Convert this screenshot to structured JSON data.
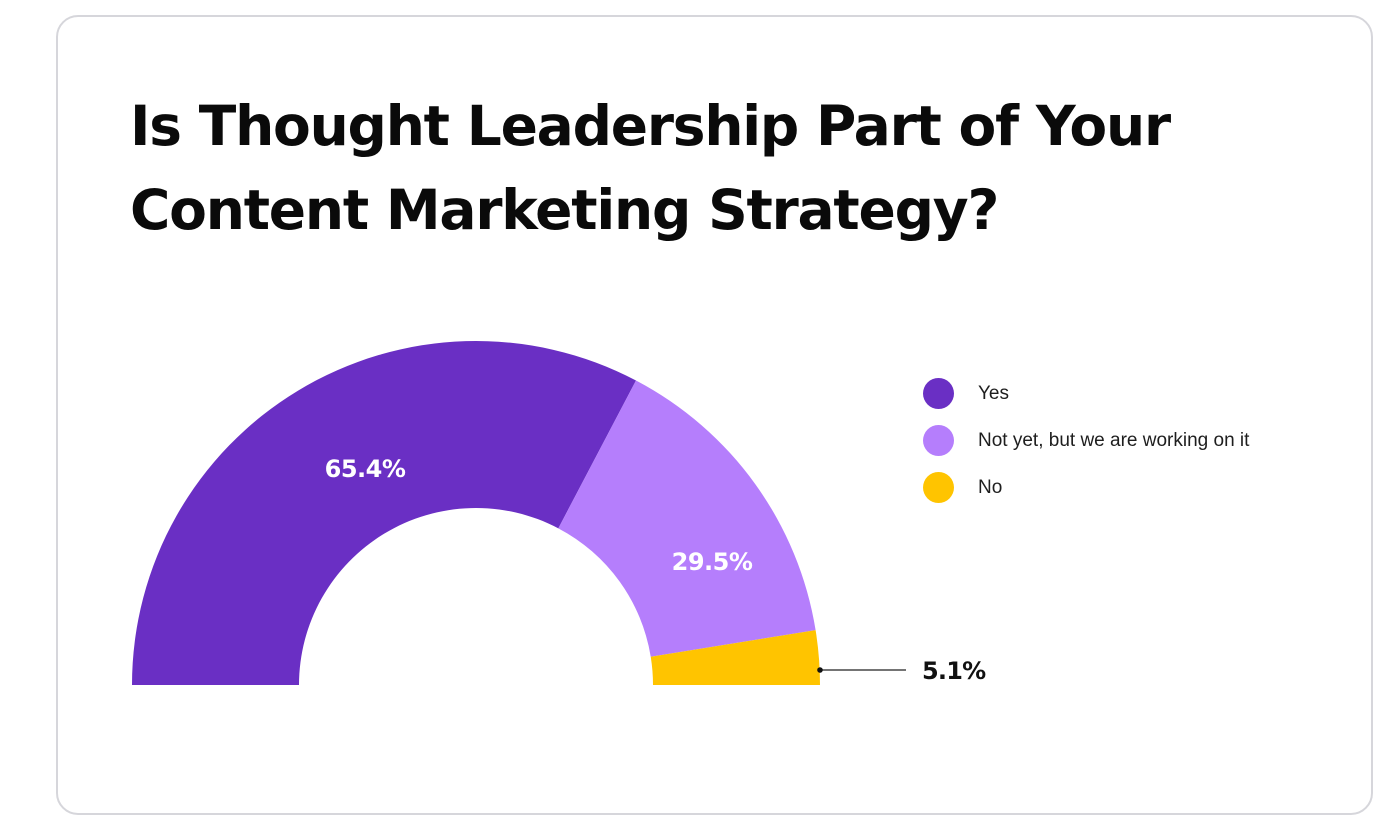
{
  "title": {
    "line1": "Is Thought Leadership Part of Your",
    "line2": "Content Marketing Strategy?"
  },
  "colors": {
    "yes": "#6A2FC4",
    "not_yet": "#B57EFC",
    "no": "#FFC400",
    "border": "#D6D6DB"
  },
  "legend": [
    {
      "label": "Yes",
      "color": "#6A2FC4"
    },
    {
      "label": "Not yet, but we are working on it",
      "color": "#B57EFC"
    },
    {
      "label": "No",
      "color": "#FFC400"
    }
  ],
  "labels": {
    "yes": "65.4%",
    "not_yet": "29.5%",
    "no": "5.1%"
  },
  "chart_data": {
    "type": "pie",
    "subtype": "semi-donut",
    "title": "Is Thought Leadership Part of Your Content Marketing Strategy?",
    "categories": [
      "Yes",
      "Not yet, but we are working on it",
      "No"
    ],
    "values": [
      65.4,
      29.5,
      5.1
    ],
    "colors": [
      "#6A2FC4",
      "#B57EFC",
      "#FFC400"
    ],
    "data_labels": [
      "65.4%",
      "29.5%",
      "5.1%"
    ],
    "legend_position": "right",
    "start_angle_deg": 180,
    "end_angle_deg": 0
  }
}
